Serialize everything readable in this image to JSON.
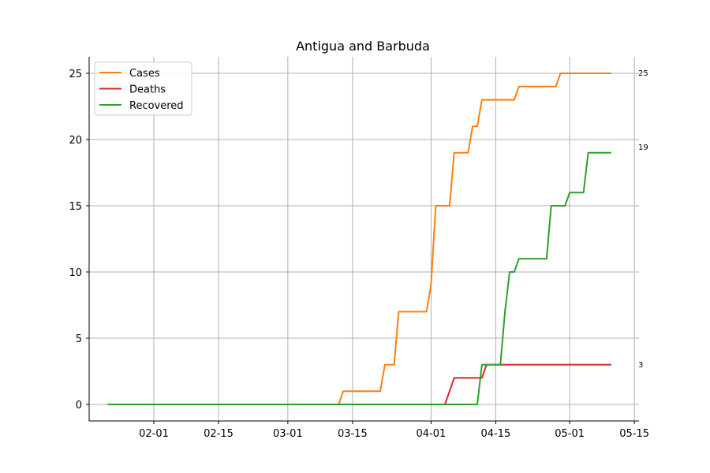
{
  "chart_data": {
    "type": "line",
    "title": "Antigua and Barbuda",
    "xlabel": "",
    "ylabel": "",
    "x_ticks": [
      "02-01",
      "02-15",
      "03-01",
      "03-15",
      "04-01",
      "04-15",
      "05-01",
      "05-15"
    ],
    "y_ticks": [
      "0",
      "5",
      "10",
      "15",
      "20",
      "25"
    ],
    "ylim": [
      -1.25,
      26.25
    ],
    "xlim": [
      "2020-01-18",
      "2020-05-16"
    ],
    "grid": true,
    "legend_position": "top-left",
    "end_labels": [
      "25",
      "3",
      "19"
    ],
    "series": [
      {
        "name": "Cases",
        "color": "#ff7f0e",
        "points": [
          [
            "2020-01-22",
            0
          ],
          [
            "2020-03-12",
            0
          ],
          [
            "2020-03-13",
            1
          ],
          [
            "2020-03-21",
            1
          ],
          [
            "2020-03-22",
            3
          ],
          [
            "2020-03-24",
            3
          ],
          [
            "2020-03-25",
            7
          ],
          [
            "2020-03-31",
            7
          ],
          [
            "2020-04-01",
            9
          ],
          [
            "2020-04-02",
            15
          ],
          [
            "2020-04-05",
            15
          ],
          [
            "2020-04-06",
            19
          ],
          [
            "2020-04-09",
            19
          ],
          [
            "2020-04-10",
            21
          ],
          [
            "2020-04-11",
            21
          ],
          [
            "2020-04-12",
            23
          ],
          [
            "2020-04-19",
            23
          ],
          [
            "2020-04-20",
            24
          ],
          [
            "2020-04-28",
            24
          ],
          [
            "2020-04-29",
            25
          ],
          [
            "2020-05-10",
            25
          ]
        ]
      },
      {
        "name": "Deaths",
        "color": "#d62728",
        "points": [
          [
            "2020-01-22",
            0
          ],
          [
            "2020-04-04",
            0
          ],
          [
            "2020-04-06",
            2
          ],
          [
            "2020-04-12",
            2
          ],
          [
            "2020-04-13",
            3
          ],
          [
            "2020-05-10",
            3
          ]
        ]
      },
      {
        "name": "Recovered",
        "color": "#2ca02c",
        "points": [
          [
            "2020-01-22",
            0
          ],
          [
            "2020-04-11",
            0
          ],
          [
            "2020-04-12",
            3
          ],
          [
            "2020-04-16",
            3
          ],
          [
            "2020-04-17",
            7
          ],
          [
            "2020-04-18",
            10
          ],
          [
            "2020-04-19",
            10
          ],
          [
            "2020-04-20",
            11
          ],
          [
            "2020-04-26",
            11
          ],
          [
            "2020-04-27",
            15
          ],
          [
            "2020-04-30",
            15
          ],
          [
            "2020-05-01",
            16
          ],
          [
            "2020-05-04",
            16
          ],
          [
            "2020-05-05",
            19
          ],
          [
            "2020-05-10",
            19
          ]
        ]
      }
    ]
  }
}
